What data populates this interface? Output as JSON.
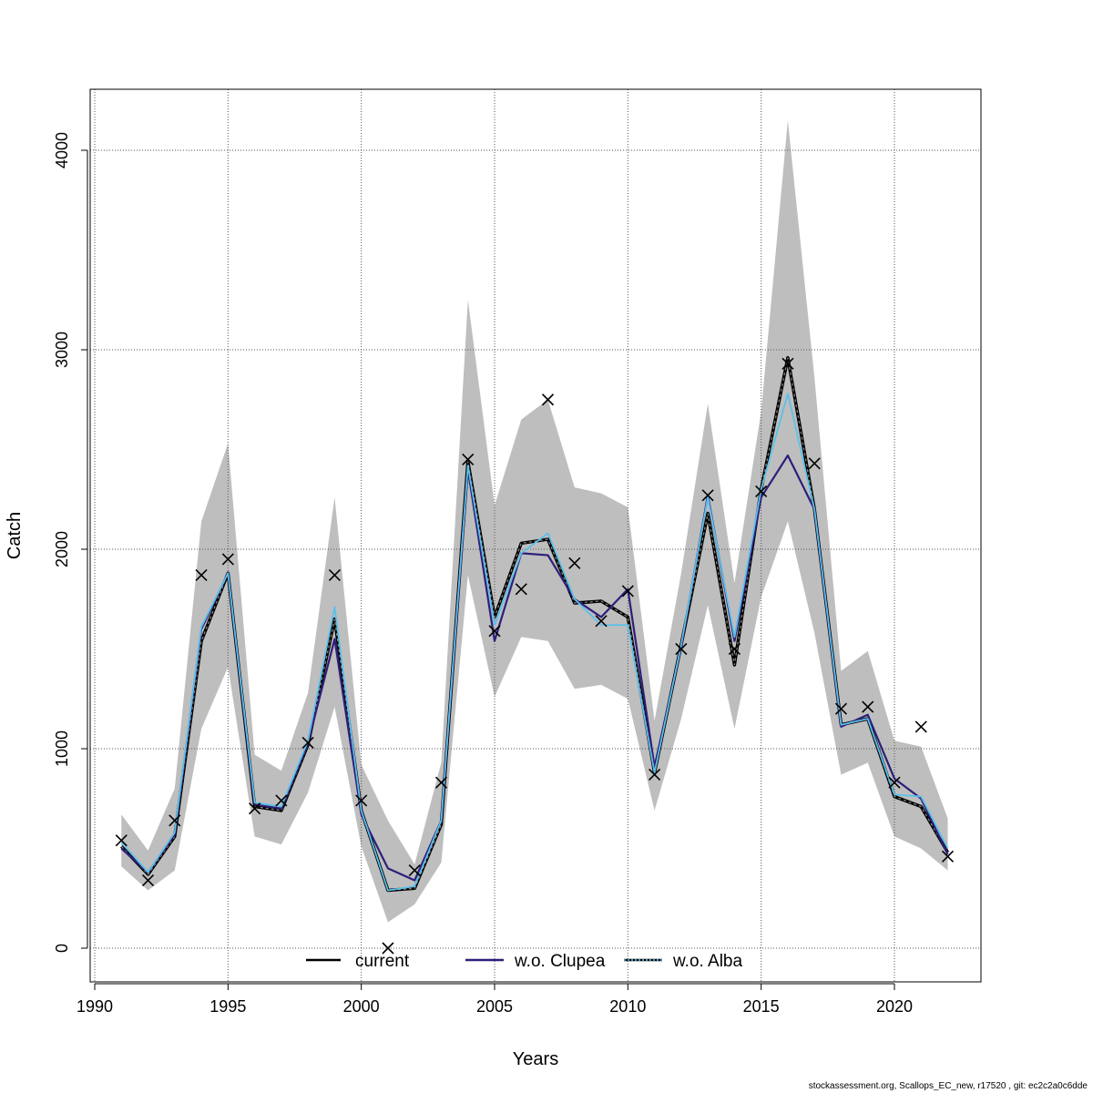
{
  "chart_data": {
    "type": "line",
    "xlabel": "Years",
    "ylabel": "Catch",
    "xlim": [
      1990,
      2023
    ],
    "ylim": [
      -150,
      4300
    ],
    "x_ticks": [
      1990,
      1995,
      2000,
      2005,
      2010,
      2015,
      2020
    ],
    "y_ticks": [
      0,
      1000,
      2000,
      3000,
      4000
    ],
    "grid": true,
    "legend_position": "bottom-center",
    "legend": [
      {
        "label": "current",
        "color": "#000000",
        "style": "solid"
      },
      {
        "label": "w.o. Clupea",
        "color": "#2e1e7a",
        "style": "solid"
      },
      {
        "label": "w.o. Alba",
        "color": "#5bc0eb",
        "style": "dotted"
      }
    ],
    "years": [
      1991,
      1992,
      1993,
      1994,
      1995,
      1996,
      1997,
      1998,
      1999,
      2000,
      2001,
      2002,
      2003,
      2004,
      2005,
      2006,
      2007,
      2008,
      2009,
      2010,
      2011,
      2012,
      2013,
      2014,
      2015,
      2016,
      2017,
      2018,
      2019,
      2020,
      2021,
      2022
    ],
    "band": {
      "upper": [
        670,
        490,
        800,
        2140,
        2530,
        970,
        890,
        1280,
        2260,
        920,
        640,
        420,
        930,
        3250,
        2220,
        2650,
        2750,
        2310,
        2280,
        2210,
        1140,
        1880,
        2730,
        1830,
        2690,
        4150,
        2860,
        1390,
        1490,
        1040,
        1010,
        650
      ],
      "lower": [
        410,
        290,
        390,
        1100,
        1410,
        560,
        520,
        780,
        1210,
        510,
        130,
        220,
        430,
        1870,
        1260,
        1560,
        1540,
        1300,
        1320,
        1250,
        690,
        1150,
        1720,
        1100,
        1760,
        2140,
        1580,
        870,
        930,
        560,
        500,
        390
      ]
    },
    "series": [
      {
        "name": "current",
        "color": "#000000",
        "values": [
          510,
          370,
          560,
          1540,
          1880,
          710,
          690,
          1020,
          1650,
          690,
          290,
          300,
          620,
          2440,
          1660,
          2030,
          2050,
          1730,
          1740,
          1660,
          880,
          1520,
          2180,
          1420,
          2300,
          2960,
          2200,
          1120,
          1150,
          760,
          710,
          480
        ]
      },
      {
        "name": "w.o. Clupea",
        "color": "#2e1e7a",
        "values": [
          500,
          380,
          570,
          1600,
          1880,
          720,
          700,
          1030,
          1550,
          670,
          400,
          340,
          640,
          2400,
          1540,
          1980,
          1970,
          1750,
          1660,
          1800,
          910,
          1510,
          2270,
          1540,
          2260,
          2470,
          2200,
          1110,
          1170,
          850,
          750,
          470
        ]
      },
      {
        "name": "w.o. Alba",
        "color": "#5bc0eb",
        "values": [
          530,
          380,
          580,
          1610,
          1880,
          730,
          710,
          1040,
          1710,
          690,
          290,
          310,
          640,
          2420,
          1620,
          1980,
          2080,
          1750,
          1620,
          1620,
          880,
          1520,
          2260,
          1560,
          2300,
          2780,
          2200,
          1120,
          1150,
          770,
          760,
          500
        ]
      }
    ],
    "observed": [
      540,
      340,
      640,
      1870,
      1950,
      700,
      740,
      1030,
      1870,
      740,
      0,
      390,
      830,
      2450,
      1590,
      1800,
      2750,
      1930,
      1640,
      1790,
      870,
      1500,
      2270,
      1500,
      2290,
      2930,
      2430,
      1200,
      1210,
      830,
      1110,
      460
    ]
  },
  "footer": "stockassessment.org, Scallops_EC_new, r17520 , git: ec2c2a0c6dde"
}
